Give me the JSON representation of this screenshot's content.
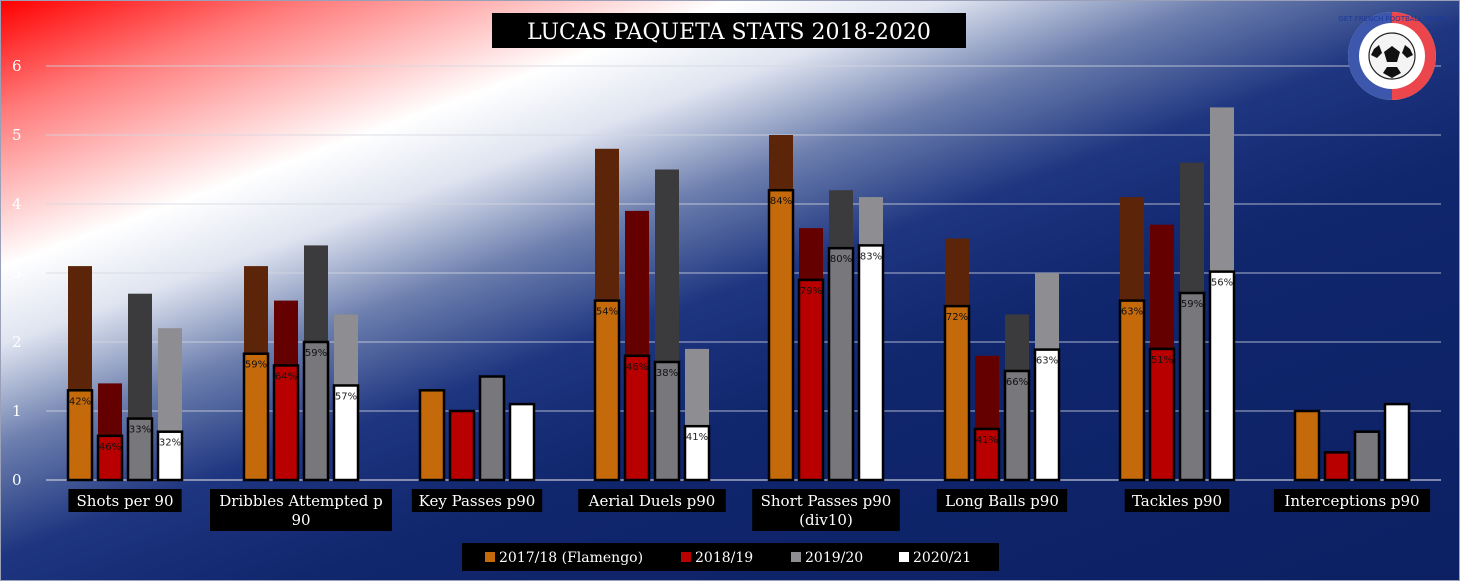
{
  "title": "LUCAS PAQUETA  STATS 2018-2020",
  "logo_text": "GET FRENCH FOOTBALL NEWS",
  "colors": {
    "2017/18 (Flamengo)": {
      "low": "#c56a0a",
      "high": "#5c2509"
    },
    "2018/19": {
      "low": "#b80000",
      "high": "#640000"
    },
    "2019/20": {
      "low": "#77777c",
      "high": "#3b3b3e"
    },
    "2020/21": {
      "low": "#ffffff",
      "high": "#8e8e92"
    }
  },
  "chart_data": {
    "type": "bar",
    "title": "LUCAS PAQUETA  STATS 2018-2020",
    "ylim": [
      0,
      6
    ],
    "yticks": [
      0,
      1,
      2,
      3,
      4,
      5,
      6
    ],
    "grid": true,
    "legend_position": "bottom",
    "categories": [
      [
        "Shots per 90"
      ],
      [
        "Dribbles Attempted p",
        "90"
      ],
      [
        "Key Passes p90"
      ],
      [
        "Aerial Duels p90"
      ],
      [
        "Short Passes p90",
        "(div10)"
      ],
      [
        "Long Balls p90"
      ],
      [
        "Tackles p90"
      ],
      [
        "Interceptions p90"
      ]
    ],
    "series": [
      {
        "name": "2017/18 (Flamengo)",
        "attempted": [
          3.1,
          3.1,
          1.3,
          4.8,
          5.0,
          3.5,
          4.1,
          1.0
        ],
        "successful": [
          1.3,
          1.83,
          1.3,
          2.6,
          4.2,
          2.52,
          2.6,
          1.0
        ],
        "pct": [
          "42%",
          "59%",
          "",
          "54%",
          "84%",
          "72%",
          "63%",
          ""
        ]
      },
      {
        "name": "2018/19",
        "attempted": [
          1.4,
          2.6,
          1.0,
          3.9,
          3.65,
          1.8,
          3.7,
          0.4
        ],
        "successful": [
          0.64,
          1.66,
          1.0,
          1.8,
          2.9,
          0.74,
          1.9,
          0.4
        ],
        "pct": [
          "46%",
          "64%",
          "",
          "46%",
          "79%",
          "41%",
          "51%",
          ""
        ]
      },
      {
        "name": "2019/20",
        "attempted": [
          2.7,
          3.4,
          1.5,
          4.5,
          4.2,
          2.4,
          4.6,
          0.7
        ],
        "successful": [
          0.89,
          2.0,
          1.5,
          1.71,
          3.36,
          1.58,
          2.71,
          0.7
        ],
        "pct": [
          "33%",
          "59%",
          "",
          "38%",
          "80%",
          "66%",
          "59%",
          ""
        ]
      },
      {
        "name": "2020/21",
        "attempted": [
          2.2,
          2.4,
          1.1,
          1.9,
          4.1,
          3.0,
          5.4,
          1.1
        ],
        "successful": [
          0.7,
          1.37,
          1.1,
          0.78,
          3.4,
          1.89,
          3.02,
          1.1
        ],
        "pct": [
          "32%",
          "57%",
          "",
          "41%",
          "83%",
          "63%",
          "56%",
          ""
        ]
      }
    ]
  }
}
